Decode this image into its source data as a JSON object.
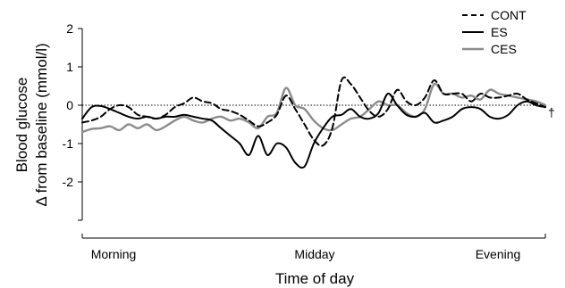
{
  "chart_data": {
    "type": "line",
    "ylabel_lines": [
      "Blood glucose",
      "Δ from baseline (mmol/l)"
    ],
    "xlabel": "Time of day",
    "x_tick_labels": [
      "Morning",
      "Midday",
      "Evening"
    ],
    "y_ticks": [
      2,
      1,
      0,
      -1,
      -2
    ],
    "y_tick_labels": [
      "2",
      "1",
      "0",
      "-1",
      "-2"
    ],
    "ylim": [
      -3,
      2
    ],
    "xlim": [
      0,
      100
    ],
    "grid": false,
    "legend_position": "top-right",
    "baseline_marker": "†",
    "colors": {
      "CONT": "#000000",
      "ES": "#000000",
      "CES": "#8c8c8c",
      "baseline": "#000000"
    },
    "series": [
      {
        "name": "CONT",
        "dash": "dashed",
        "x": [
          0,
          2,
          4,
          6,
          8,
          10,
          12,
          14,
          16,
          18,
          20,
          22,
          24,
          26,
          28,
          30,
          32,
          34,
          36,
          38,
          40,
          42,
          44,
          46,
          48,
          50,
          52,
          54,
          56,
          58,
          60,
          62,
          64,
          66,
          68,
          70,
          72,
          74,
          76,
          78,
          80,
          82,
          84,
          86,
          88,
          90,
          92,
          94,
          96,
          98,
          100
        ],
        "y": [
          -0.45,
          -0.4,
          -0.3,
          -0.1,
          0.0,
          -0.05,
          -0.25,
          -0.3,
          -0.35,
          -0.25,
          -0.05,
          0.05,
          0.2,
          0.1,
          0.05,
          -0.1,
          -0.15,
          -0.25,
          -0.4,
          -0.55,
          -0.45,
          -0.25,
          0.25,
          -0.1,
          -0.5,
          -0.9,
          -1.05,
          -0.6,
          0.65,
          0.55,
          0.2,
          -0.15,
          -0.3,
          -0.1,
          0.4,
          0.1,
          0.0,
          0.2,
          0.65,
          0.3,
          0.3,
          0.3,
          0.1,
          0.3,
          0.2,
          0.2,
          0.25,
          0.3,
          0.15,
          0.05,
          -0.05
        ]
      },
      {
        "name": "ES",
        "dash": "solid",
        "x": [
          0,
          2,
          4,
          6,
          8,
          10,
          12,
          14,
          16,
          18,
          20,
          22,
          24,
          26,
          28,
          30,
          32,
          34,
          36,
          38,
          40,
          42,
          44,
          46,
          48,
          50,
          52,
          54,
          56,
          58,
          60,
          62,
          64,
          66,
          68,
          70,
          72,
          74,
          76,
          78,
          80,
          82,
          84,
          86,
          88,
          90,
          92,
          94,
          96,
          98,
          100
        ],
        "y": [
          -0.35,
          -0.05,
          -0.02,
          -0.1,
          -0.2,
          -0.3,
          -0.35,
          -0.3,
          -0.35,
          -0.3,
          -0.3,
          -0.25,
          -0.3,
          -0.35,
          -0.4,
          -0.6,
          -0.8,
          -1.0,
          -1.3,
          -0.8,
          -1.3,
          -1.0,
          -1.1,
          -1.5,
          -1.6,
          -1.0,
          -0.6,
          -0.3,
          -0.25,
          -0.1,
          -0.3,
          -0.35,
          -0.2,
          0.3,
          0.0,
          -0.25,
          -0.3,
          -0.2,
          -0.45,
          -0.4,
          -0.3,
          -0.1,
          -0.05,
          -0.1,
          -0.3,
          -0.35,
          -0.25,
          0.0,
          0.1,
          0.0,
          -0.05
        ]
      },
      {
        "name": "CES",
        "dash": "solid",
        "x": [
          0,
          2,
          4,
          6,
          8,
          10,
          12,
          14,
          16,
          18,
          20,
          22,
          24,
          26,
          28,
          30,
          32,
          34,
          36,
          38,
          40,
          42,
          44,
          46,
          48,
          50,
          52,
          54,
          56,
          58,
          60,
          62,
          64,
          66,
          68,
          70,
          72,
          74,
          76,
          78,
          80,
          82,
          84,
          86,
          88,
          90,
          92,
          94,
          96,
          98,
          100
        ],
        "y": [
          -0.7,
          -0.62,
          -0.6,
          -0.55,
          -0.65,
          -0.5,
          -0.6,
          -0.5,
          -0.65,
          -0.55,
          -0.4,
          -0.3,
          -0.4,
          -0.45,
          -0.35,
          -0.3,
          -0.4,
          -0.35,
          -0.45,
          -0.6,
          -0.3,
          -0.2,
          0.45,
          0.0,
          -0.1,
          -0.4,
          -0.6,
          -0.65,
          -0.5,
          -0.35,
          -0.3,
          -0.1,
          0.1,
          0.0,
          0.0,
          -0.2,
          -0.3,
          -0.1,
          0.55,
          0.3,
          0.3,
          0.2,
          0.25,
          0.15,
          0.4,
          0.3,
          0.25,
          0.2,
          0.15,
          0.1,
          0.0
        ]
      }
    ]
  }
}
